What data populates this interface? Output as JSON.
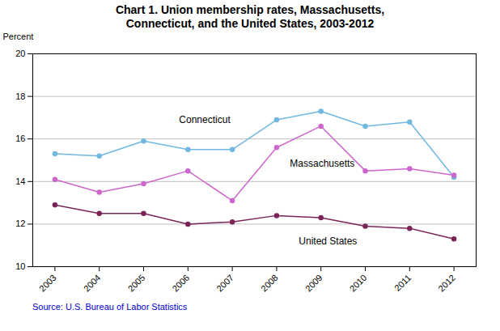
{
  "chart_data": {
    "type": "line",
    "title": "Chart 1.  Union membership rates, Massachusetts,\nConnecticut, and the United States, 2003-2012",
    "y_label": "Percent",
    "caption": "Source: U.S. Bureau of Labor Statistics",
    "x": [
      2003,
      2004,
      2005,
      2006,
      2007,
      2008,
      2009,
      2010,
      2011,
      2012
    ],
    "series": [
      {
        "name": "Connecticut",
        "color": "#70B8E0",
        "marker": "circle",
        "values": [
          15.3,
          15.2,
          15.9,
          15.5,
          15.5,
          16.9,
          17.3,
          16.6,
          16.8,
          14.2
        ]
      },
      {
        "name": "Massachusetts",
        "color": "#CC66CC",
        "marker": "circle",
        "values": [
          14.1,
          13.5,
          13.9,
          14.5,
          13.1,
          15.6,
          16.6,
          14.5,
          14.6,
          14.3
        ]
      },
      {
        "name": "United States",
        "color": "#7B2458",
        "marker": "circle",
        "values": [
          12.9,
          12.5,
          12.5,
          12.0,
          12.1,
          12.4,
          12.3,
          11.9,
          11.8,
          11.3
        ]
      }
    ],
    "annotations": [
      {
        "text": "Connecticut",
        "x": 2005.8,
        "y": 16.75
      },
      {
        "text": "Massachusetts",
        "x": 2008.3,
        "y": 14.7
      },
      {
        "text": "United States",
        "x": 2008.5,
        "y": 11.05
      }
    ],
    "xlim": [
      2002.5,
      2012.5
    ],
    "xticks": [
      2003,
      2004,
      2005,
      2006,
      2007,
      2008,
      2009,
      2010,
      2011,
      2012
    ],
    "ylim": [
      10,
      20
    ],
    "yticks": [
      10,
      12,
      14,
      16,
      18,
      20
    ],
    "grid": true
  }
}
